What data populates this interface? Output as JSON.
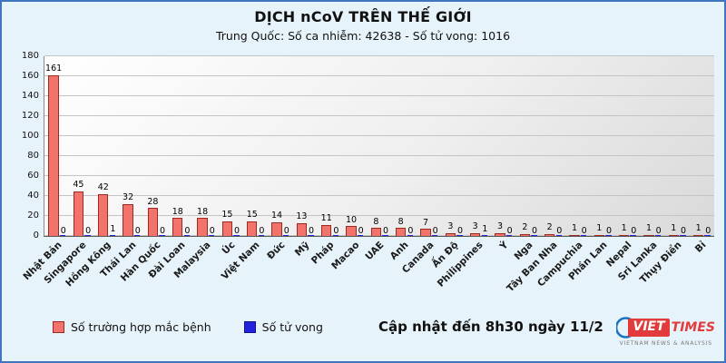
{
  "header": {
    "title": "DỊCH nCoV TRÊN THẾ GIỚI",
    "subtitle": "Trung Quốc: Số ca nhiễm: 42638 - Số tử vong: 1016"
  },
  "chart_data": {
    "type": "bar",
    "title": "DỊCH nCoV TRÊN THẾ GIỚI",
    "subtitle": "Trung Quốc: Số ca nhiễm: 42638 - Số tử vong: 1016",
    "categories": [
      "Nhật Bản",
      "Singapore",
      "Hồng Kông",
      "Thái Lan",
      "Hàn Quốc",
      "Đài Loan",
      "Malaysia",
      "Úc",
      "Việt Nam",
      "Đức",
      "Mỹ",
      "Pháp",
      "Macao",
      "UAE",
      "Anh",
      "Canada",
      "Ấn Độ",
      "Philippines",
      "Ý",
      "Nga",
      "Tây Ban Nha",
      "Campuchia",
      "Phần Lan",
      "Nepal",
      "Sri Lanka",
      "Thụy Điển",
      "Bỉ"
    ],
    "series": [
      {
        "name": "Số trường hợp mắc bệnh",
        "color": "#f2736b",
        "border_color": "#9c2a21",
        "values": [
          161,
          45,
          42,
          32,
          28,
          18,
          18,
          15,
          15,
          14,
          13,
          11,
          10,
          8,
          8,
          7,
          3,
          3,
          3,
          2,
          2,
          1,
          1,
          1,
          1,
          1,
          1
        ]
      },
      {
        "name": "Số tử vong",
        "color": "#2222dd",
        "border_color": "#11118a",
        "values": [
          0,
          0,
          1,
          0,
          0,
          0,
          0,
          0,
          0,
          0,
          0,
          0,
          0,
          0,
          0,
          0,
          0,
          1,
          0,
          0,
          0,
          0,
          0,
          0,
          0,
          0,
          0
        ]
      }
    ],
    "ylim": [
      0,
      180
    ],
    "yticks": [
      0,
      20,
      40,
      60,
      80,
      100,
      120,
      140,
      160,
      180
    ],
    "grid": true,
    "value_labels": true,
    "legend_position": "bottom-left"
  },
  "footer": {
    "update_text": "Cập nhật đến 8h30 ngày 11/2",
    "logo": {
      "viet": "VIET",
      "times": "TIMES",
      "tagline": "VIETNAM NEWS & ANALYSIS"
    }
  },
  "colors": {
    "background": "#e7f3fb",
    "frame_border": "#3f76bf",
    "gridline": "#c4c4c4"
  }
}
